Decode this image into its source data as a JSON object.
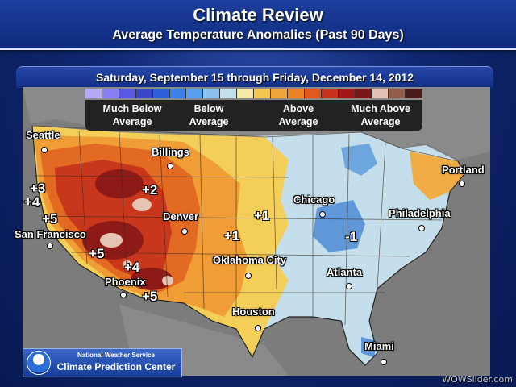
{
  "header": {
    "title": "Climate Review",
    "subtitle": "Average Temperature Anomalies (Past 90 Days)"
  },
  "period": "Saturday, September 15 through Friday, December 14, 2012",
  "legend": {
    "colors": [
      "#b7a8f5",
      "#8a7ff0",
      "#5a57e0",
      "#3a47c8",
      "#2e5fd8",
      "#3d7fe8",
      "#59a0ec",
      "#8cc0ee",
      "#c5dfec",
      "#f5e9a8",
      "#f2c84e",
      "#f0a53a",
      "#ec8426",
      "#e05a1f",
      "#c8321c",
      "#a01818",
      "#7a1616",
      "#e3c1b3",
      "#8f5d4a",
      "#4a1a1a"
    ],
    "labels": [
      "Much Below Average",
      "Below Average",
      "Above Average",
      "Much Above Average"
    ]
  },
  "cities": [
    {
      "name": "Seattle"
    },
    {
      "name": "Billings"
    },
    {
      "name": "Portland"
    },
    {
      "name": "San Francisco"
    },
    {
      "name": "Denver"
    },
    {
      "name": "Chicago"
    },
    {
      "name": "Philadelphia"
    },
    {
      "name": "Oklahoma City"
    },
    {
      "name": "Phoenix"
    },
    {
      "name": "Atlanta"
    },
    {
      "name": "Houston"
    },
    {
      "name": "Miami"
    }
  ],
  "anomalies": [
    "+3",
    "+4",
    "+5",
    "+2",
    "+1",
    "+1",
    "-1",
    "+5",
    "+4",
    "+5"
  ],
  "credit": {
    "line1": "National Weather Service",
    "line2": "Climate Prediction Center"
  },
  "watermark": "WOWSlider.com"
}
